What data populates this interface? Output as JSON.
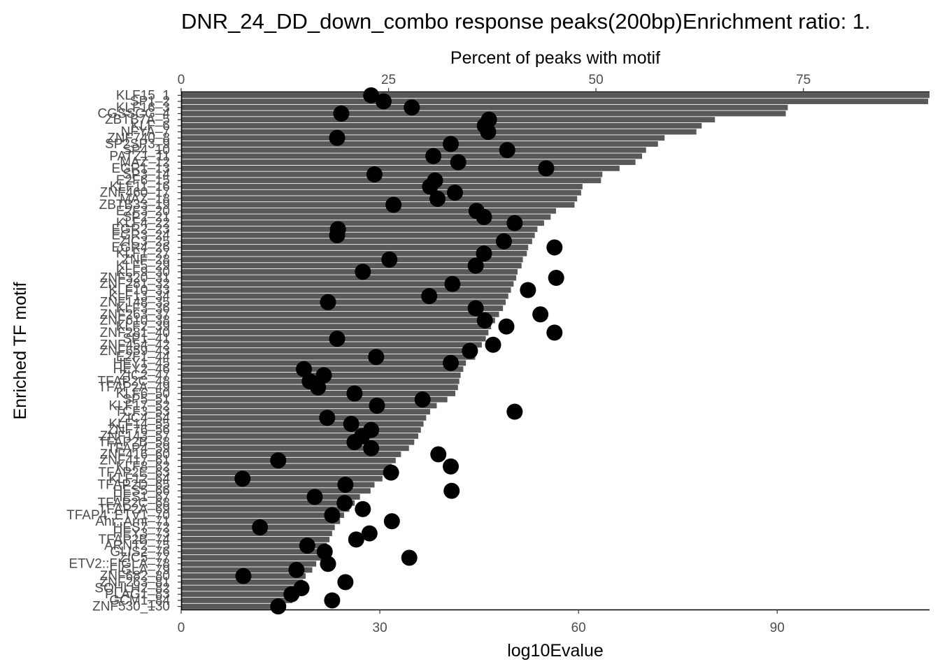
{
  "chart_data": {
    "type": "bar",
    "title": "DNR_24_DD_down_combo response peaks(200bp)Enrichment ratio: 1.",
    "xlabel": "log10Evalue",
    "ylabel": "Enriched TF motif",
    "secondary_xlabel": "Percent of peaks with motif",
    "xlim": [
      0,
      113
    ],
    "xticks": [
      0,
      30,
      60,
      90
    ],
    "secondary_xlim": [
      0,
      90.2
    ],
    "secondary_xticks": [
      0,
      25,
      50,
      75
    ],
    "categories": [
      "KLF15_1",
      "SP1_2",
      "KLF16_3",
      "CGSSCG_4",
      "ZBTB7A_5",
      "KLF_6",
      "NFYA_7",
      "ZNF740_8",
      "SP2SP3_9",
      "SP4_10",
      "PATZ1_11",
      "MAZ_12",
      "EGR1_13",
      "SP3_14",
      "E2F6_15",
      "KLF11_16",
      "ZNF460_17",
      "MAZ_18",
      "ZBTB33_19",
      "E2F3_20",
      "SP2_21",
      "KLF4_22",
      "EGR2_23",
      "EGR3_24",
      "ZIC3_25",
      "EGR4_26",
      "KLF1_27",
      "ZNF_28",
      "KLF5_29",
      "KLF9_30",
      "ZNF320_31",
      "ZNF281_32",
      "KLF10_33",
      "KLF13_34",
      "ZNF148_35",
      "KLF3_36",
      "ZNF263_37",
      "ZNF610_38",
      "KLF2_39",
      "ZNF281_40",
      "SP1_41",
      "ZNF454_42",
      "ZNF659_43",
      "E2F1_44",
      "HEY1_45",
      "HEY2_46",
      "ZIC2_47",
      "TFAP2C_48",
      "TFAP2A_49",
      "KLF6_50",
      "SP5_51",
      "KLF17_52",
      "TCF3_53",
      "ZIC4_54",
      "KLF14_55",
      "ZNF76_56",
      "ZNF143_57",
      "TFAP2B_58",
      "TFAP4_59",
      "ZNF416_60",
      "ZNF417_61",
      "KLF8_62",
      "TFAP2E_63",
      "KLF12_64",
      "TFAP2D_65",
      "HES5_66",
      "HES1_67",
      "TFAP2C_68",
      "TFAP2A_69",
      "TFAP4::ETV1_70",
      "Ahr::Arnt_71",
      "HES7_72",
      "HEY3_73",
      "TFAP2B_74",
      "ARNT2_75",
      "GLIS2_76",
      "ZIC5_77",
      "ETV2::FIGLA_78",
      "FIGLA_79",
      "ZNF682_80",
      "ZNF263_81",
      "SOHLH2_82",
      "PLAG1_83",
      "GCM1_84",
      "ZNF530_130"
    ],
    "display_labels": [
      "KLF15_1",
      "SP1_2",
      "KLF16_3",
      "CGSSCG_4",
      "ZBTB7A_5",
      "KLF_6",
      "NFYA_7",
      "ZNF740_8",
      "SP2SP3_9",
      "SP4_10",
      "PATZ1_11",
      "MAZ_12",
      "EGR1_13",
      "SP3_14",
      "E2F6_15",
      "KLF11_16",
      "ZNF460_17",
      "MAZ_18",
      "ZBTB33_19",
      "E2F3_20",
      "SP2_21",
      "KLF4_22",
      "EGR2_23",
      "EGR3_24",
      "ZIC3_25",
      "EGR4_26",
      "KLF1_27",
      "ZNF_28",
      "KLF5_29",
      "KLF9_30",
      "ZNF320_31",
      "ZNF281_32",
      "KLF10_33",
      "KLF13_34",
      "ZNF148_35",
      "KLF3_36",
      "ZNF263_37",
      "ZNF610_38",
      "KLF2_39",
      "ZNF281_40",
      "SP1_41",
      "ZNF454_42",
      "ZNF659_43",
      "E2F1_44",
      "HEY1_45",
      "HEY2_46",
      "ZIC2_47",
      "TFAP2C_48",
      "TFAP2A_49",
      "KLF6_50",
      "SP5_51",
      "KLF17_52",
      "TCF3_53",
      "ZIC4_54",
      "KLF14_55",
      "ZNF76_56",
      "ZNF143_57",
      "TFAP2B_58",
      "TFAP4_59",
      "ZNF416_60",
      "ZNF417_61",
      "KLF8_62",
      "TFAP2E_63",
      "KLF12_64",
      "TFAP2D_65",
      "HES5_66",
      "HES1_67",
      "TFAP2C_68",
      "TFAP2A_69",
      "TFAP4::ETV1_70",
      "Ahr::Arnt_71",
      "HES7_72",
      "HEY3_73",
      "TFAP2B_74",
      "ARNT2_75",
      "GLIS2_76",
      "ZIC5_77",
      "ETV2::FIGLA_78",
      "FIGLA_79",
      "ZNF682_80",
      "ZNF263_81",
      "SOHLH2_82",
      "PLAG1_83",
      "GCM1_84",
      "ZNF530_130"
    ],
    "series": [
      {
        "values": [
          113,
          112.8,
          91.6,
          91.3,
          80.6,
          78.6,
          77.8,
          73.0,
          72.0,
          70.2,
          69.6,
          68.6,
          66.2,
          63.6,
          63.4,
          60.6,
          60.4,
          59.8,
          59.4,
          56.6,
          55.8,
          54.8,
          53.8,
          53.4,
          53.0,
          52.4,
          52.2,
          51.6,
          51.4,
          50.8,
          50.6,
          50.2,
          49.8,
          49.4,
          49.0,
          48.6,
          48.0,
          47.4,
          46.8,
          46.4,
          46.0,
          45.4,
          44.8,
          44.4,
          43.0,
          42.6,
          42.2,
          42.0,
          41.8,
          41.4,
          40.2,
          38.6,
          37.6,
          37.0,
          36.6,
          36.2,
          35.8,
          35.2,
          34.4,
          33.2,
          32.4,
          31.8,
          31.2,
          30.4,
          29.2,
          28.6,
          27.0,
          26.2,
          25.4,
          24.6,
          24.0,
          23.2,
          22.8,
          22.4,
          22.0,
          21.8,
          21.2,
          20.4,
          19.8,
          18.8,
          18.4,
          18.0,
          17.4,
          16.8,
          14.6
        ]
      },
      {
        "values": [
          22.9,
          24.4,
          27.8,
          19.3,
          37.1,
          36.6,
          37.0,
          18.8,
          32.5,
          39.3,
          30.4,
          33.4,
          44.0,
          23.3,
          30.6,
          30.0,
          33.0,
          30.9,
          25.6,
          35.6,
          36.5,
          40.2,
          18.9,
          18.8,
          38.9,
          45.0,
          36.5,
          25.1,
          35.5,
          21.9,
          45.2,
          32.7,
          41.8,
          29.9,
          17.7,
          35.5,
          43.3,
          36.6,
          39.2,
          45.0,
          18.8,
          37.6,
          34.8,
          23.5,
          32.5,
          14.8,
          17.2,
          15.5,
          16.5,
          20.9,
          29.1,
          23.6,
          40.2,
          17.6,
          20.5,
          22.9,
          21.8,
          20.9,
          22.9,
          31.0,
          11.7,
          32.5,
          25.3,
          7.4,
          19.8,
          32.6,
          16.1,
          19.7,
          21.9,
          18.2,
          25.4,
          9.5,
          22.7,
          21.1,
          15.2,
          17.3,
          27.5,
          17.7,
          13.9,
          7.5,
          19.8,
          14.5,
          13.3,
          18.2,
          11.7
        ]
      }
    ],
    "grid": false,
    "legend": "none"
  }
}
